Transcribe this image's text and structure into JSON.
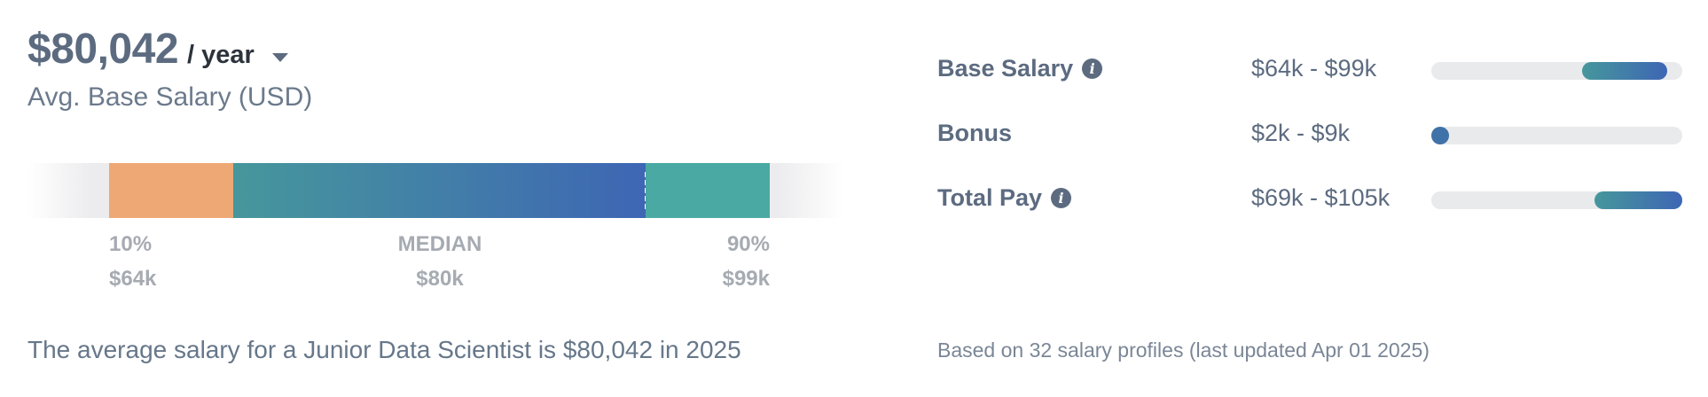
{
  "salary_summary": {
    "amount": "$80,042",
    "period_label": "/ year",
    "subheading": "Avg. Base Salary (USD)",
    "percentile_chart": {
      "p10_label": "10%",
      "p10_value": "$64k",
      "median_label": "MEDIAN",
      "median_value": "$80k",
      "p90_label": "90%",
      "p90_value": "$99k"
    },
    "summary_text": "The average salary for a Junior Data Scientist is $80,042 in 2025"
  },
  "pay_breakdown": {
    "rows": [
      {
        "label": "Base Salary",
        "has_info": true,
        "range": "$64k - $99k"
      },
      {
        "label": "Bonus",
        "has_info": false,
        "range": "$2k - $9k"
      },
      {
        "label": "Total Pay",
        "has_info": true,
        "range": "$69k - $105k"
      }
    ],
    "footnote": "Based on 32 salary profiles (last updated Apr 01 2025)"
  },
  "icons": {
    "period_dropdown": "chevron-down-icon",
    "info": "info-icon"
  },
  "colors": {
    "p10_segment": "#eea876",
    "median_gradient_start": "#46979c",
    "median_gradient_end": "#3e66b4",
    "p90_segment": "#4aa9a3",
    "track": "#e9eaec",
    "text_primary": "#5c6b80"
  }
}
